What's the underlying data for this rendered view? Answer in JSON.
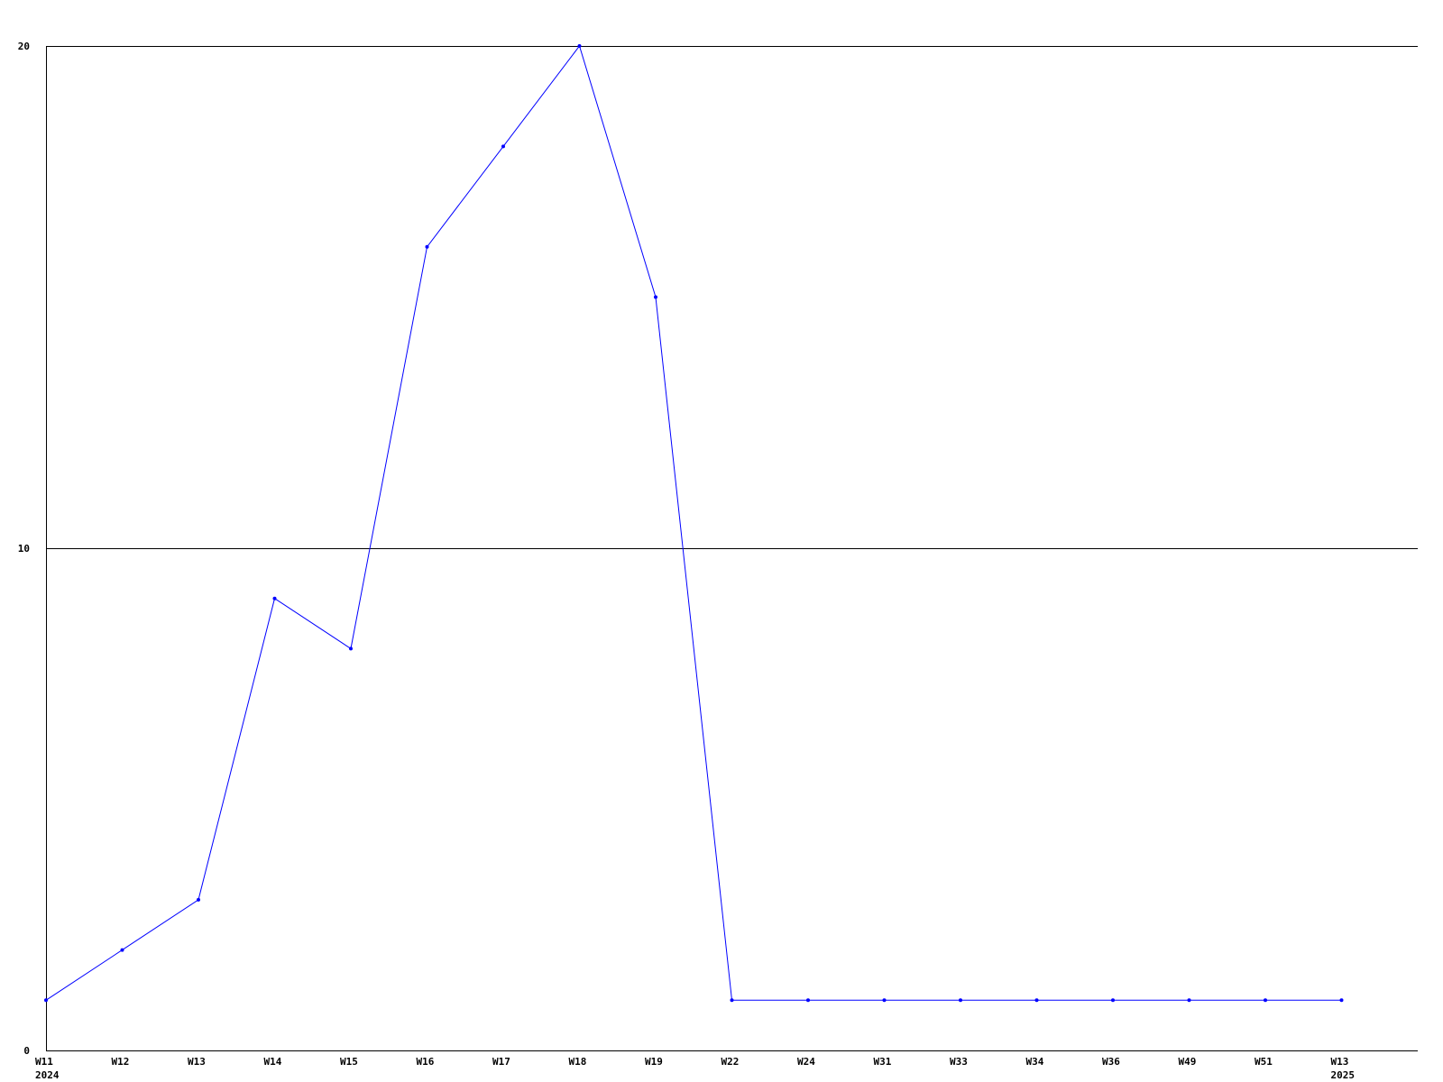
{
  "chart_data": {
    "type": "line",
    "title": "",
    "xlabel": "",
    "ylabel": "",
    "categories": [
      "W11",
      "W12",
      "W13",
      "W14",
      "W15",
      "W16",
      "W17",
      "W18",
      "W19",
      "W22",
      "W24",
      "W31",
      "W33",
      "W34",
      "W36",
      "W49",
      "W51",
      "W13"
    ],
    "category_sublabels": [
      "2024",
      "",
      "",
      "",
      "",
      "",
      "",
      "",
      "",
      "",
      "",
      "",
      "",
      "",
      "",
      "",
      "",
      "2025"
    ],
    "series": [
      {
        "values": [
          1,
          2,
          3,
          9,
          8,
          16,
          18,
          20,
          15,
          1,
          1,
          1,
          1,
          1,
          1,
          1,
          1,
          1
        ],
        "color": "#0000ff"
      }
    ],
    "ylim": [
      0,
      20
    ],
    "yticks": [
      0,
      10,
      20
    ],
    "grid": "horizontal",
    "axis_color": "#000000"
  }
}
